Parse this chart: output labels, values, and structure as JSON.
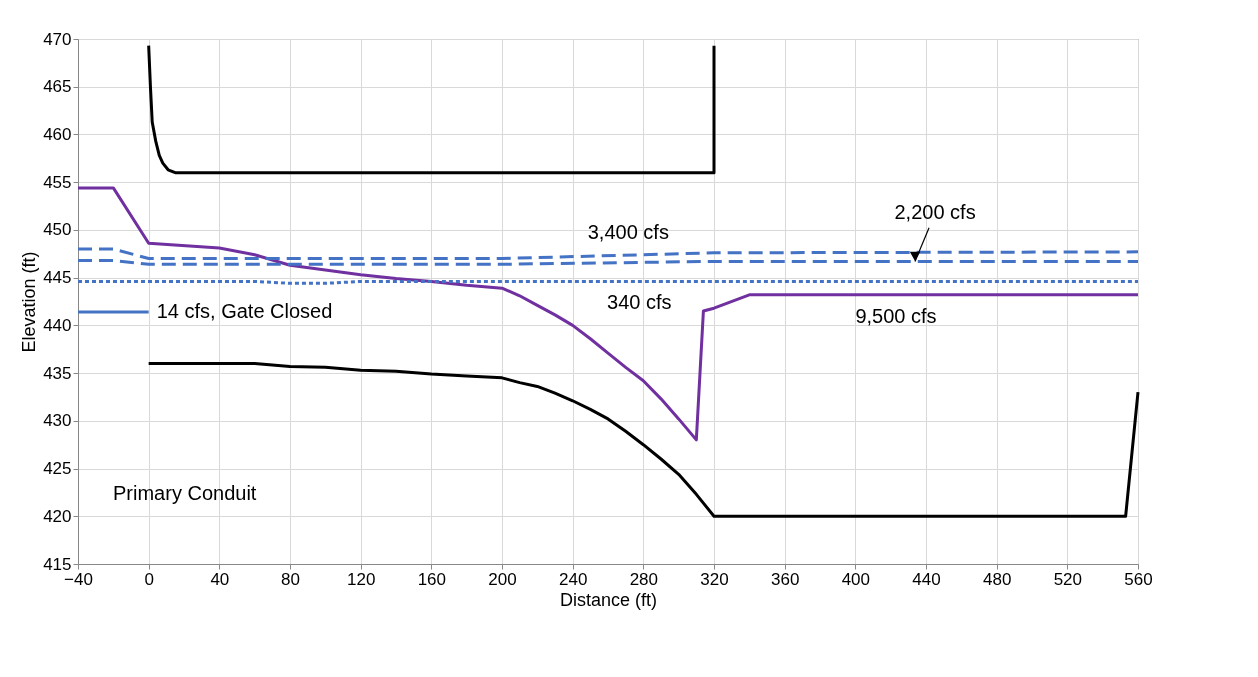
{
  "chart_data": {
    "type": "line",
    "xlabel": "Distance (ft)",
    "ylabel": "Elevation (ft)",
    "xlim": [
      -40,
      560
    ],
    "xticks": [
      -40,
      0,
      40,
      80,
      120,
      160,
      200,
      240,
      280,
      320,
      360,
      400,
      440,
      480,
      520,
      560
    ],
    "ylim": [
      415,
      470
    ],
    "yticks": [
      415,
      420,
      425,
      430,
      435,
      440,
      445,
      450,
      455,
      460,
      465,
      470
    ],
    "grid": true,
    "marker": "none",
    "series": [
      {
        "color": "#000000",
        "line_style": "solid",
        "x": [
          0,
          1,
          2,
          4,
          6,
          8,
          11,
          15,
          320,
          320
        ],
        "values": [
          469.3,
          465,
          461.3,
          459.3,
          457.8,
          457,
          456.3,
          456,
          456,
          469.3
        ]
      },
      {
        "color": "#000000",
        "line_style": "solid",
        "x": [
          0,
          60,
          80,
          100,
          120,
          140,
          160,
          180,
          200,
          210,
          220,
          230,
          240,
          250,
          260,
          270,
          280,
          290,
          300,
          310,
          320,
          553,
          560
        ],
        "values": [
          436.0,
          436.0,
          435.7,
          435.6,
          435.3,
          435.2,
          434.9,
          434.7,
          434.5,
          434.0,
          433.6,
          432.9,
          432.1,
          431.2,
          430.2,
          428.9,
          427.5,
          426.0,
          424.4,
          422.3,
          420.0,
          420.0,
          433.0
        ]
      },
      {
        "color": "#7030a0",
        "line_style": "solid",
        "x": [
          -40,
          -20,
          0,
          40,
          60,
          80,
          100,
          120,
          140,
          160,
          180,
          200,
          210,
          220,
          230,
          240,
          250,
          260,
          270,
          280,
          290,
          300,
          310,
          314,
          320,
          340,
          560
        ],
        "values": [
          454.4,
          454.4,
          448.6,
          448.1,
          447.4,
          446.3,
          445.8,
          445.3,
          444.9,
          444.6,
          444.2,
          443.9,
          443.1,
          442.1,
          441.1,
          440.0,
          438.6,
          437.1,
          435.6,
          434.2,
          432.3,
          430.2,
          428.0,
          441.5,
          441.8,
          443.2,
          443.2
        ]
      },
      {
        "color": "#4472c4",
        "line_style": "dashed",
        "x": [
          -40,
          -20,
          0,
          200,
          320,
          560
        ],
        "values": [
          448.0,
          448.0,
          447.0,
          447.0,
          447.6,
          447.7
        ]
      },
      {
        "color": "#4472c4",
        "line_style": "dashed",
        "x": [
          -40,
          -20,
          0,
          200,
          320,
          560
        ],
        "values": [
          446.8,
          446.8,
          446.4,
          446.4,
          446.7,
          446.7
        ]
      },
      {
        "color": "#4472c4",
        "line_style": "dotted",
        "x": [
          -40,
          60,
          80,
          100,
          120,
          560
        ],
        "values": [
          444.6,
          444.6,
          444.4,
          444.4,
          444.6,
          444.6
        ]
      },
      {
        "color": "#4472c4",
        "line_style": "solid",
        "x": [
          -40,
          0
        ],
        "values": [
          441.4,
          441.4
        ]
      }
    ],
    "annotations": [
      {
        "text": "3,400 cfs",
        "x": 271.5,
        "y": 447.4
      },
      {
        "text": "2,200 cfs",
        "x": 433.8,
        "y": 446.7
      },
      {
        "text": "340 cfs",
        "x": 277.7,
        "y": 444.6
      },
      {
        "text": "14 cfs, Gate Closed",
        "x": 0,
        "y": 441.4
      },
      {
        "text": "9,500 cfs",
        "x": 423,
        "y": 443.2
      },
      "Primary Conduit"
    ]
  }
}
